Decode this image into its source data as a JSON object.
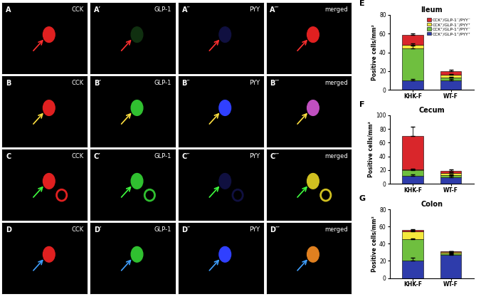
{
  "image_panels": {
    "channels": [
      "CCK",
      "GLP-1",
      "PYY",
      "merged"
    ],
    "rows": [
      [
        "A",
        "A′",
        "A″",
        "A‴"
      ],
      [
        "B",
        "B′",
        "B″",
        "B‴"
      ],
      [
        "C",
        "C′",
        "C″",
        "C‴"
      ],
      [
        "D",
        "D′",
        "D″",
        "D‴"
      ]
    ]
  },
  "chart_data": [
    {
      "type": "bar",
      "panel": "E",
      "title": "Ileum",
      "y_label": "Positive cells/mm²",
      "stacked": true,
      "categories": [
        "KHK-F",
        "WT-F"
      ],
      "ylim": [
        0,
        80
      ],
      "yticks": [
        0,
        20,
        40,
        60,
        80
      ],
      "legend": "upper right",
      "series": [
        {
          "name": "CCK⁺/GLP-1⁺/PYY⁺",
          "color": "#2e3cab",
          "values": [
            10,
            10
          ],
          "errors": [
            1.5,
            1.5
          ]
        },
        {
          "name": "CCK⁺/GLP-1⁺/PYY⁻",
          "color": "#6fbf3f",
          "values": [
            34,
            3
          ],
          "errors": [
            3,
            1
          ]
        },
        {
          "name": "CCK⁺/GLP-1⁻/PYY⁺",
          "color": "#f5e83c",
          "values": [
            4,
            3
          ],
          "errors": [
            1.5,
            1
          ]
        },
        {
          "name": "CCK⁺/GLP-1⁻/PYY⁻",
          "color": "#d9262b",
          "values": [
            11,
            4
          ],
          "errors": [
            1.5,
            1
          ]
        }
      ]
    },
    {
      "type": "bar",
      "panel": "F",
      "title": "Cecum",
      "y_label": "Positive cells/mm²",
      "stacked": true,
      "categories": [
        "KHK-F",
        "WT-F"
      ],
      "ylim": [
        0,
        100
      ],
      "yticks": [
        0,
        20,
        40,
        60,
        80,
        100
      ],
      "series": [
        {
          "name": "CCK⁺/GLP-1⁺/PYY⁺",
          "color": "#2e3cab",
          "values": [
            12,
            10
          ],
          "errors": [
            2,
            2
          ]
        },
        {
          "name": "CCK⁺/GLP-1⁺/PYY⁻",
          "color": "#6fbf3f",
          "values": [
            8,
            3
          ],
          "errors": [
            1,
            1
          ]
        },
        {
          "name": "CCK⁺/GLP-1⁻/PYY⁺",
          "color": "#f5e83c",
          "values": [
            1,
            3
          ],
          "errors": [
            1,
            1
          ]
        },
        {
          "name": "CCK⁺/GLP-1⁻/PYY⁻",
          "color": "#d9262b",
          "values": [
            49,
            3
          ],
          "errors": [
            13,
            2
          ]
        }
      ]
    },
    {
      "type": "bar",
      "panel": "G",
      "title": "Colon",
      "y_label": "Positive cells/mm²",
      "stacked": true,
      "categories": [
        "KHK-F",
        "WT-F"
      ],
      "ylim": [
        0,
        80
      ],
      "yticks": [
        0,
        20,
        40,
        60,
        80
      ],
      "series": [
        {
          "name": "CCK⁺/GLP-1⁺/PYY⁺",
          "color": "#2e3cab",
          "values": [
            20,
            27
          ],
          "errors": [
            4,
            1
          ]
        },
        {
          "name": "CCK⁺/GLP-1⁺/PYY⁻",
          "color": "#6fbf3f",
          "values": [
            25,
            2
          ],
          "errors": [
            1,
            0.5
          ]
        },
        {
          "name": "CCK⁺/GLP-1⁻/PYY⁺",
          "color": "#f5e83c",
          "values": [
            9,
            1.5
          ],
          "errors": [
            1,
            0.5
          ]
        },
        {
          "name": "CCK⁺/GLP-1⁻/PYY⁻",
          "color": "#d9262b",
          "values": [
            2,
            0.5
          ],
          "errors": [
            1,
            0.5
          ]
        }
      ]
    }
  ]
}
